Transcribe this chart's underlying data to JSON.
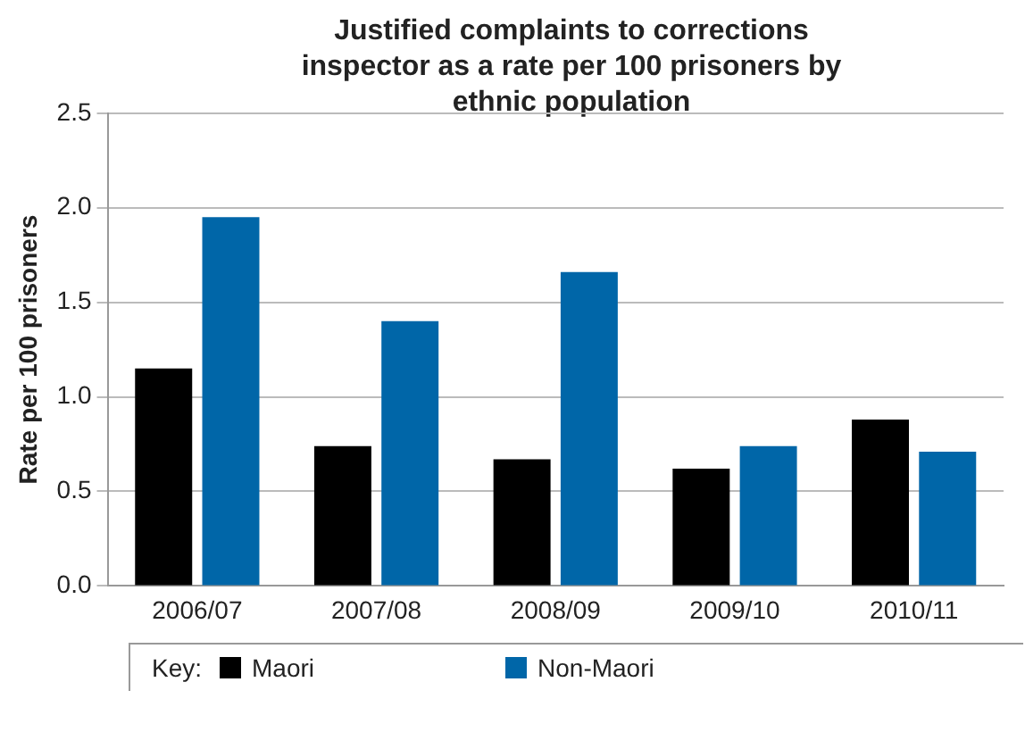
{
  "chart_data": {
    "type": "bar",
    "title": "Justified complaints to corrections inspector as a rate per 100 prisoners by ethnic population",
    "ylabel": "Rate per 100 prisoners",
    "legend_title": "Key:",
    "categories": [
      "2006/07",
      "2007/08",
      "2008/09",
      "2009/10",
      "2010/11"
    ],
    "series": [
      {
        "name": "Maori",
        "color": "#000000",
        "values": [
          1.15,
          0.74,
          0.67,
          0.62,
          0.88
        ]
      },
      {
        "name": "Non-Maori",
        "color": "#0066a8",
        "values": [
          1.95,
          1.4,
          1.66,
          0.74,
          0.71
        ]
      }
    ],
    "ylim": [
      0,
      2.5
    ],
    "yticks": [
      {
        "value": 0,
        "label": "0.0"
      },
      {
        "value": 0.5,
        "label": "0.5"
      },
      {
        "value": 1,
        "label": "1.0"
      },
      {
        "value": 1.5,
        "label": "1.5"
      },
      {
        "value": 2,
        "label": "2.0"
      },
      {
        "value": 2.5,
        "label": "2.5"
      }
    ],
    "grid": "y",
    "legend": "bottom"
  }
}
